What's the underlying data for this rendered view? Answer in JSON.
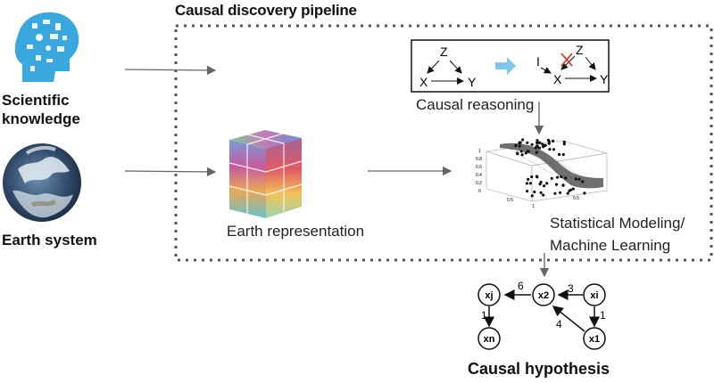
{
  "title": "Causal discovery pipeline",
  "inputs": {
    "scientific": "Scientific knowledge",
    "scientific_lines": [
      "Scientific",
      "knowledge"
    ],
    "earth": "Earth system"
  },
  "earth_representation": "Earth representation",
  "causal_reasoning": {
    "label": "Causal reasoning",
    "left_nodes": [
      "Z",
      "X",
      "Y"
    ],
    "right_nodes": [
      "I",
      "Z",
      "X",
      "Y"
    ]
  },
  "statistical_modeling": {
    "lines": [
      "Statistical Modeling/",
      "Machine Learning"
    ],
    "y_ticks": [
      "1",
      "0.8",
      "0.6",
      "0.4",
      "0.2",
      "0"
    ],
    "x_ticks": [
      "0.5",
      "1",
      "0.5"
    ]
  },
  "hypothesis": {
    "label": "Causal hypothesis",
    "nodes": [
      "xj",
      "x2",
      "xi",
      "xn",
      "x1"
    ],
    "edge_weights": [
      "6",
      "3",
      "1",
      "4",
      "1"
    ]
  },
  "colors": {
    "dotted_border": "#555555",
    "arrow": "#555555",
    "accent_arrow": "#7fc6e8",
    "cross": "#d9432f"
  }
}
